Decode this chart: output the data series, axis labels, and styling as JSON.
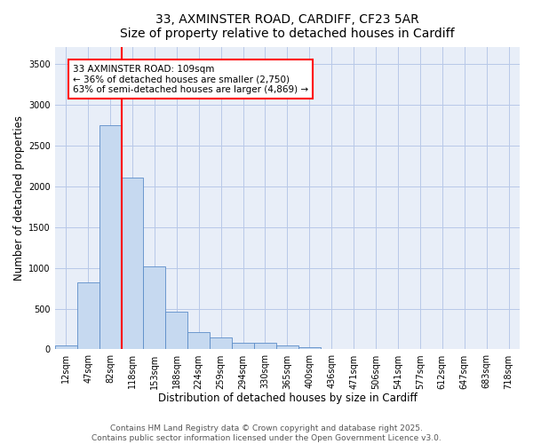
{
  "title_line1": "33, AXMINSTER ROAD, CARDIFF, CF23 5AR",
  "title_line2": "Size of property relative to detached houses in Cardiff",
  "xlabel": "Distribution of detached houses by size in Cardiff",
  "ylabel": "Number of detached properties",
  "categories": [
    "12sqm",
    "47sqm",
    "82sqm",
    "118sqm",
    "153sqm",
    "188sqm",
    "224sqm",
    "259sqm",
    "294sqm",
    "330sqm",
    "365sqm",
    "400sqm",
    "436sqm",
    "471sqm",
    "506sqm",
    "541sqm",
    "577sqm",
    "612sqm",
    "647sqm",
    "683sqm",
    "718sqm"
  ],
  "values": [
    50,
    820,
    2750,
    2100,
    1020,
    460,
    210,
    150,
    80,
    80,
    50,
    30,
    0,
    0,
    0,
    0,
    0,
    0,
    0,
    0,
    0
  ],
  "bar_color": "#c6d9f0",
  "bar_edge_color": "#5b8cc8",
  "grid_color": "#b8c8e8",
  "bg_color": "#e8eef8",
  "vline_color": "red",
  "annotation_text": "33 AXMINSTER ROAD: 109sqm\n← 36% of detached houses are smaller (2,750)\n63% of semi-detached houses are larger (4,869) →",
  "annotation_box_facecolor": "white",
  "annotation_box_edgecolor": "red",
  "ylim": [
    0,
    3700
  ],
  "yticks": [
    0,
    500,
    1000,
    1500,
    2000,
    2500,
    3000,
    3500
  ],
  "footer_line1": "Contains HM Land Registry data © Crown copyright and database right 2025.",
  "footer_line2": "Contains public sector information licensed under the Open Government Licence v3.0.",
  "title_fontsize": 10,
  "axis_label_fontsize": 8.5,
  "tick_fontsize": 7,
  "annotation_fontsize": 7.5,
  "footer_fontsize": 6.5
}
